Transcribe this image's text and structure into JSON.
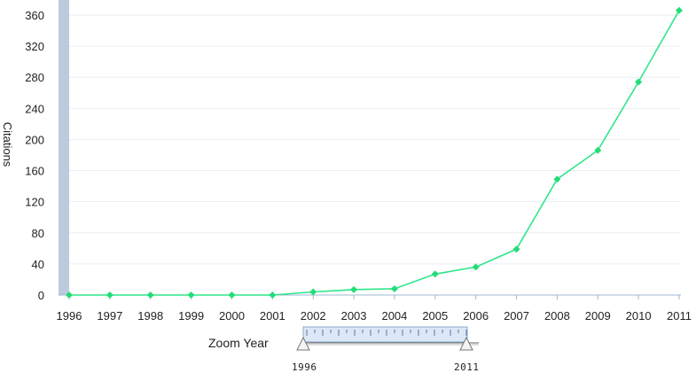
{
  "chart_data": {
    "type": "line",
    "x": [
      1996,
      1997,
      1998,
      1999,
      2000,
      2001,
      2002,
      2003,
      2004,
      2005,
      2006,
      2007,
      2008,
      2009,
      2010,
      2011
    ],
    "x_tick_labels": [
      "1996",
      "1997",
      "1998",
      "1999",
      "2000",
      "2001",
      "2002",
      "2003",
      "2004",
      "2005",
      "2006",
      "2007",
      "2008",
      "2009",
      "2010",
      "2011"
    ],
    "series": [
      {
        "values": [
          0,
          0,
          0,
          0,
          0,
          0,
          4,
          7,
          8,
          27,
          36,
          59,
          149,
          186,
          274,
          366
        ]
      }
    ],
    "ylabel": "Citations",
    "xlabel": "",
    "ylim": [
      0,
      360
    ],
    "y_ticks": [
      0,
      40,
      80,
      120,
      160,
      200,
      240,
      280,
      320,
      360
    ],
    "grid": true,
    "line_color": "#2ee68a",
    "marker_color": "#22dd77"
  },
  "zoom": {
    "label": "Zoom Year",
    "start": "1996",
    "end": "2011"
  }
}
